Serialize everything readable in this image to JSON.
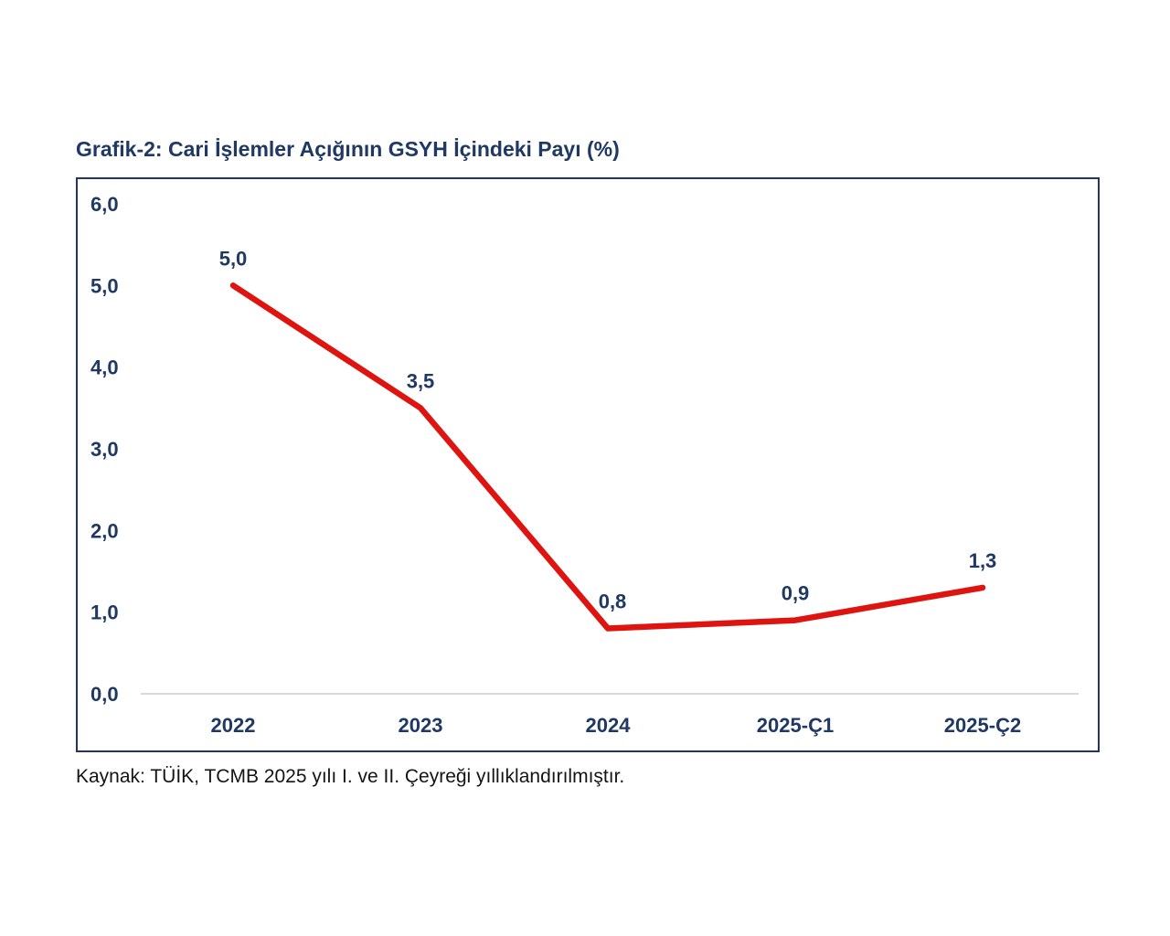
{
  "page": {
    "title": "Grafik-2: Cari İşlemler Açığının GSYH İçindeki Payı (%)",
    "source_note": "Kaynak: TÜİK, TCMB 2025 yılı I. ve II. Çeyreği yıllıklandırılmıştır."
  },
  "chart_data": {
    "type": "line",
    "title": "Grafik-2: Cari İşlemler Açığının GSYH İçindeki Payı (%)",
    "categories": [
      "2022",
      "2023",
      "2024",
      "2025-Ç1",
      "2025-Ç2"
    ],
    "values": [
      5.0,
      3.5,
      0.8,
      0.9,
      1.3
    ],
    "data_labels": [
      "5,0",
      "3,5",
      "0,8",
      "0,9",
      "1,3"
    ],
    "y_ticks": [
      {
        "value": 6,
        "label": "6,0"
      },
      {
        "value": 5,
        "label": "5,0"
      },
      {
        "value": 4,
        "label": "4,0"
      },
      {
        "value": 3,
        "label": "3,0"
      },
      {
        "value": 2,
        "label": "2,0"
      },
      {
        "value": 1,
        "label": "1,0"
      },
      {
        "value": 0,
        "label": "0,0"
      }
    ],
    "ylim": [
      0,
      6
    ],
    "xlabel": "",
    "ylabel": "",
    "grid": "none (single light baseline at 0,0 only)",
    "legend": "none",
    "source": "Kaynak: TÜİK, TCMB 2025 yılı I. ve II. Çeyreği yıllıklandırılmıştır."
  },
  "colors": {
    "navy_text": "#1f3864",
    "line_red": "#de1410",
    "baseline_gray": "#d9d9d9",
    "box_border": "#24355e",
    "background": "#ffffff",
    "source_text": "#141414"
  }
}
